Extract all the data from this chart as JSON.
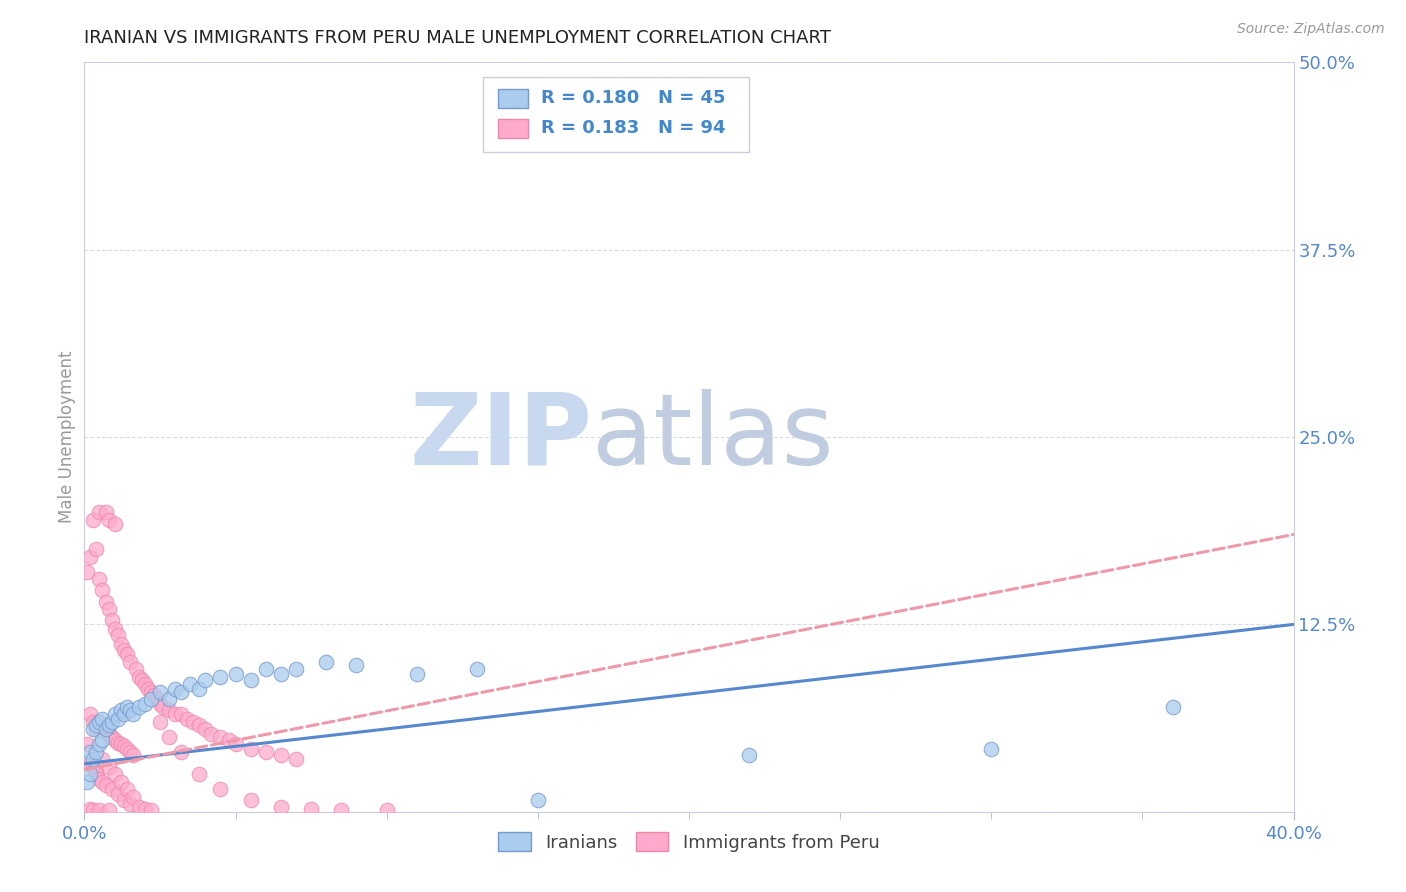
{
  "title": "IRANIAN VS IMMIGRANTS FROM PERU MALE UNEMPLOYMENT CORRELATION CHART",
  "source_text": "Source: ZipAtlas.com",
  "ylabel": "Male Unemployment",
  "x_min": 0.0,
  "x_max": 0.4,
  "y_min": 0.0,
  "y_max": 0.5,
  "y_ticks": [
    0.0,
    0.125,
    0.25,
    0.375,
    0.5
  ],
  "y_tick_labels": [
    "",
    "12.5%",
    "25.0%",
    "37.5%",
    "50.0%"
  ],
  "grid_color": "#d8dce8",
  "background_color": "#ffffff",
  "title_color": "#222222",
  "tick_color": "#5588cc",
  "watermark_zip": "ZIP",
  "watermark_atlas": "atlas",
  "watermark_color_zip": "#c8d8ee",
  "watermark_color_atlas": "#c0cce0",
  "iranians_color": "#aaccee",
  "peru_color": "#ffaacc",
  "iranians_edge": "#7799cc",
  "peru_edge": "#ee88aa",
  "legend_r_color": "#4488cc",
  "legend_n_color": "#4488cc",
  "iranians_label": "Iranians",
  "peru_label": "Immigrants from Peru",
  "trendline1_color": "#5588cc",
  "trendline2_color": "#ee99aa",
  "iran_trend_x0": 0.0,
  "iran_trend_y0": 0.032,
  "iran_trend_x1": 0.4,
  "iran_trend_y1": 0.125,
  "peru_trend_x0": 0.0,
  "peru_trend_y0": 0.028,
  "peru_trend_x1": 0.4,
  "peru_trend_y1": 0.185,
  "iranians_x": [
    0.001,
    0.002,
    0.002,
    0.003,
    0.003,
    0.004,
    0.004,
    0.005,
    0.005,
    0.006,
    0.006,
    0.007,
    0.008,
    0.009,
    0.01,
    0.011,
    0.012,
    0.013,
    0.014,
    0.015,
    0.016,
    0.018,
    0.02,
    0.022,
    0.025,
    0.028,
    0.03,
    0.032,
    0.035,
    0.038,
    0.04,
    0.045,
    0.05,
    0.055,
    0.06,
    0.065,
    0.07,
    0.08,
    0.09,
    0.11,
    0.13,
    0.15,
    0.22,
    0.3,
    0.36
  ],
  "iranians_y": [
    0.02,
    0.025,
    0.04,
    0.035,
    0.055,
    0.04,
    0.058,
    0.045,
    0.06,
    0.048,
    0.062,
    0.055,
    0.058,
    0.06,
    0.065,
    0.062,
    0.068,
    0.065,
    0.07,
    0.068,
    0.065,
    0.07,
    0.072,
    0.075,
    0.08,
    0.075,
    0.082,
    0.08,
    0.085,
    0.082,
    0.088,
    0.09,
    0.092,
    0.088,
    0.095,
    0.092,
    0.095,
    0.1,
    0.098,
    0.092,
    0.095,
    0.008,
    0.038,
    0.042,
    0.07
  ],
  "peru_x": [
    0.001,
    0.001,
    0.002,
    0.002,
    0.003,
    0.003,
    0.004,
    0.004,
    0.005,
    0.005,
    0.005,
    0.006,
    0.006,
    0.007,
    0.007,
    0.007,
    0.008,
    0.008,
    0.008,
    0.009,
    0.009,
    0.01,
    0.01,
    0.01,
    0.011,
    0.011,
    0.012,
    0.012,
    0.013,
    0.013,
    0.014,
    0.014,
    0.015,
    0.015,
    0.016,
    0.017,
    0.018,
    0.019,
    0.02,
    0.021,
    0.022,
    0.023,
    0.024,
    0.025,
    0.026,
    0.028,
    0.03,
    0.032,
    0.034,
    0.036,
    0.038,
    0.04,
    0.042,
    0.045,
    0.048,
    0.05,
    0.055,
    0.06,
    0.065,
    0.07,
    0.002,
    0.003,
    0.004,
    0.004,
    0.005,
    0.006,
    0.006,
    0.007,
    0.008,
    0.009,
    0.01,
    0.011,
    0.012,
    0.013,
    0.014,
    0.015,
    0.016,
    0.018,
    0.02,
    0.022,
    0.025,
    0.028,
    0.032,
    0.038,
    0.045,
    0.055,
    0.065,
    0.075,
    0.085,
    0.1,
    0.002,
    0.003,
    0.005,
    0.008
  ],
  "peru_y": [
    0.045,
    0.16,
    0.065,
    0.17,
    0.06,
    0.195,
    0.055,
    0.175,
    0.06,
    0.155,
    0.2,
    0.058,
    0.148,
    0.055,
    0.14,
    0.2,
    0.052,
    0.135,
    0.195,
    0.05,
    0.128,
    0.048,
    0.122,
    0.192,
    0.046,
    0.118,
    0.045,
    0.112,
    0.044,
    0.108,
    0.042,
    0.105,
    0.04,
    0.1,
    0.038,
    0.095,
    0.09,
    0.088,
    0.085,
    0.082,
    0.08,
    0.078,
    0.075,
    0.072,
    0.07,
    0.068,
    0.065,
    0.065,
    0.062,
    0.06,
    0.058,
    0.055,
    0.052,
    0.05,
    0.048,
    0.045,
    0.042,
    0.04,
    0.038,
    0.035,
    0.032,
    0.03,
    0.028,
    0.025,
    0.022,
    0.02,
    0.035,
    0.018,
    0.03,
    0.015,
    0.025,
    0.012,
    0.02,
    0.008,
    0.015,
    0.005,
    0.01,
    0.003,
    0.002,
    0.001,
    0.06,
    0.05,
    0.04,
    0.025,
    0.015,
    0.008,
    0.003,
    0.002,
    0.001,
    0.001,
    0.002,
    0.001,
    0.001,
    0.001
  ]
}
